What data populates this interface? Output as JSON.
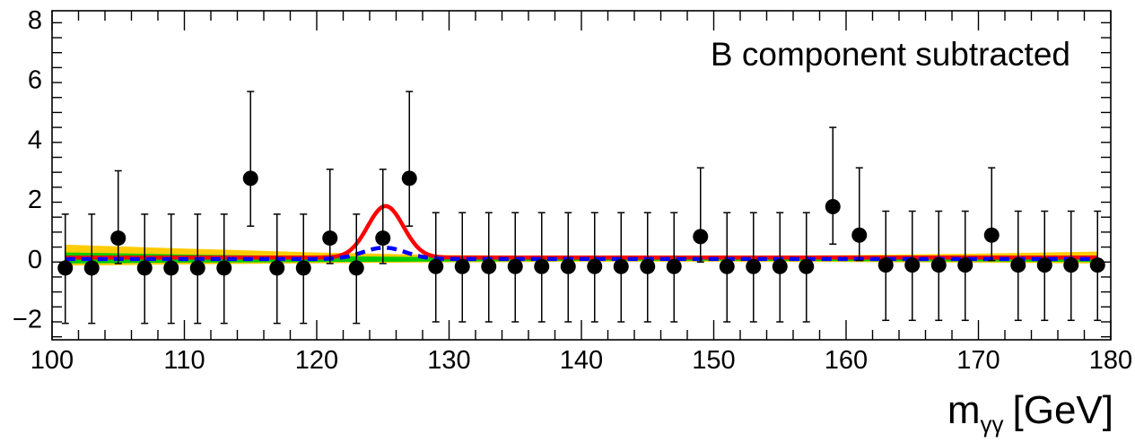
{
  "chart_data": {
    "type": "scatter",
    "annotation": "B component subtracted",
    "xlabel": {
      "main": "m",
      "sub": "γγ",
      "unit": "[GeV]"
    },
    "ylabel": "",
    "xlim": [
      100,
      180
    ],
    "ylim": [
      -2.7,
      8.3
    ],
    "x_ticks": [
      100,
      110,
      120,
      130,
      140,
      150,
      160,
      170,
      180
    ],
    "y_ticks": [
      -2,
      0,
      2,
      4,
      6,
      8
    ],
    "grid": false,
    "colors": {
      "points": "#000000",
      "signal_fit": "#ff0000",
      "background_fit": "#0000ff",
      "band_1sigma": "#00cc00",
      "band_2sigma": "#ffcc00"
    },
    "series": [
      {
        "name": "",
        "style": "points_with_errors",
        "x": [
          101,
          103,
          105,
          107,
          109,
          111,
          113,
          115,
          117,
          119,
          121,
          123,
          125,
          127,
          129,
          131,
          133,
          135,
          137,
          139,
          141,
          143,
          145,
          147,
          149,
          151,
          153,
          155,
          157,
          159,
          161,
          163,
          165,
          167,
          169,
          171,
          173,
          175,
          177,
          179
        ],
        "y": [
          -0.3,
          -0.3,
          0.7,
          -0.3,
          -0.3,
          -0.3,
          -0.3,
          2.7,
          -0.3,
          -0.3,
          0.7,
          -0.3,
          0.7,
          2.7,
          -0.25,
          -0.25,
          -0.25,
          -0.25,
          -0.25,
          -0.25,
          -0.25,
          -0.25,
          -0.25,
          -0.25,
          0.75,
          -0.25,
          -0.25,
          -0.25,
          -0.25,
          1.75,
          0.8,
          -0.2,
          -0.2,
          -0.2,
          -0.2,
          0.8,
          -0.2,
          -0.2,
          -0.2,
          -0.2
        ],
        "err_low": [
          1.85,
          1.85,
          0.85,
          1.85,
          1.85,
          1.85,
          1.85,
          1.6,
          1.85,
          1.85,
          0.85,
          1.85,
          0.85,
          1.6,
          1.85,
          1.85,
          1.85,
          1.85,
          1.85,
          1.85,
          1.85,
          1.85,
          1.85,
          1.85,
          0.85,
          1.85,
          1.85,
          1.85,
          1.85,
          1.25,
          0.85,
          1.85,
          1.85,
          1.85,
          1.85,
          0.85,
          1.85,
          1.85,
          1.85,
          1.85
        ],
        "err_high": [
          1.8,
          1.8,
          2.25,
          1.8,
          1.8,
          1.8,
          1.8,
          2.9,
          1.8,
          1.8,
          2.3,
          1.8,
          2.3,
          2.9,
          1.8,
          1.8,
          1.8,
          1.8,
          1.8,
          1.8,
          1.8,
          1.8,
          1.8,
          1.8,
          2.3,
          1.8,
          1.8,
          1.8,
          1.8,
          2.65,
          2.25,
          1.8,
          1.8,
          1.8,
          1.8,
          2.25,
          1.8,
          1.8,
          1.8,
          1.8
        ]
      },
      {
        "name": "",
        "style": "line_solid",
        "curve": "gaussian",
        "baseline": 0.05,
        "amplitude": 1.72,
        "mean": 125.2,
        "sigma": 1.35
      },
      {
        "name": "",
        "style": "line_dashed",
        "curve": "gaussian",
        "baseline": 0.0,
        "amplitude": 0.38,
        "mean": 125.1,
        "sigma": 1.6
      }
    ],
    "bands": {
      "x": [
        101,
        110,
        120,
        130,
        140,
        150,
        160,
        170,
        179
      ],
      "sigma1_low": [
        -0.15,
        -0.12,
        -0.1,
        -0.08,
        -0.06,
        -0.06,
        -0.07,
        -0.08,
        -0.1
      ],
      "sigma1_high": [
        0.22,
        0.15,
        0.1,
        0.06,
        0.05,
        0.05,
        0.06,
        0.08,
        0.12
      ],
      "sigma2_low": [
        -0.22,
        -0.18,
        -0.14,
        -0.11,
        -0.09,
        -0.09,
        -0.1,
        -0.12,
        -0.15
      ],
      "sigma2_high": [
        0.48,
        0.35,
        0.22,
        0.13,
        0.1,
        0.1,
        0.13,
        0.18,
        0.25
      ]
    }
  }
}
